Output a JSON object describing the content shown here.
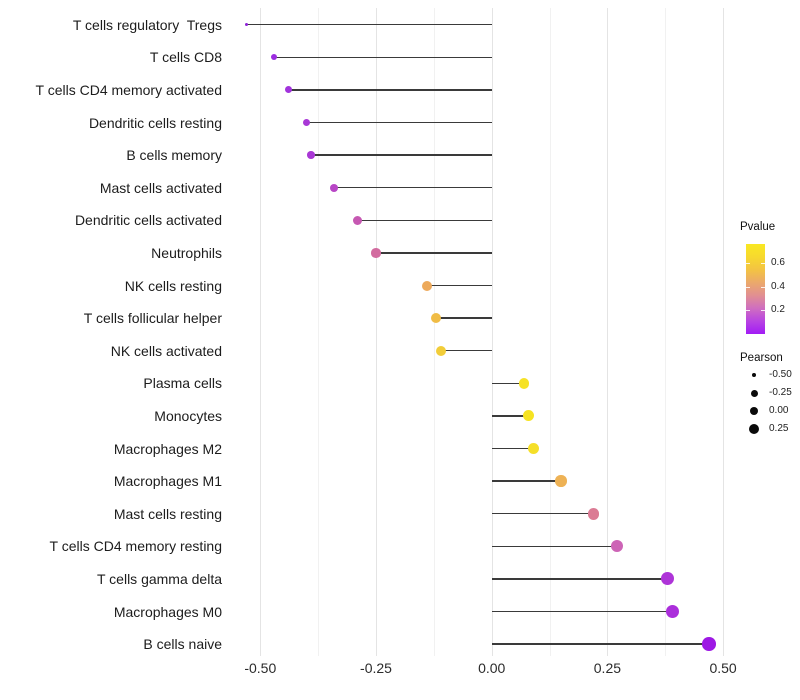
{
  "chart_data": {
    "type": "scatter",
    "variant": "lollipop",
    "orientation": "horizontal",
    "title": "",
    "xlabel": "",
    "ylabel": "",
    "grid": "vertical-only",
    "baseline": 0,
    "xlim": [
      -0.55,
      0.54
    ],
    "x_major_ticks": [
      -0.5,
      -0.25,
      0,
      0.25,
      0.5
    ],
    "x_tick_labels": [
      "-0.50",
      "-0.25",
      "0.00",
      "0.25",
      "0.50"
    ],
    "x_minor_ticks": [
      -0.375,
      -0.125,
      0.125,
      0.375
    ],
    "categories": [
      "T cells regulatory  Tregs",
      "T cells CD8",
      "T cells CD4 memory activated",
      "Dendritic cells resting",
      "B cells memory",
      "Mast cells activated",
      "Dendritic cells activated",
      "Neutrophils",
      "NK cells resting",
      "T cells follicular helper",
      "NK cells activated",
      "Plasma cells",
      "Monocytes",
      "Macrophages M2",
      "Macrophages M1",
      "Mast cells resting",
      "T cells CD4 memory resting",
      "T cells gamma delta",
      "Macrophages M0",
      "B cells naive"
    ],
    "series": [
      {
        "name": "Pearson",
        "values": [
          -0.53,
          -0.47,
          -0.44,
          -0.4,
          -0.39,
          -0.34,
          -0.29,
          -0.25,
          -0.14,
          -0.12,
          -0.11,
          0.07,
          0.08,
          0.09,
          0.15,
          0.22,
          0.27,
          0.38,
          0.39,
          0.47
        ]
      }
    ],
    "point_colors": [
      "#8f23d8",
      "#9c2de0",
      "#a133dc",
      "#a838d6",
      "#a938d5",
      "#b846c6",
      "#c658b2",
      "#d26b9f",
      "#eda95a",
      "#f0bc45",
      "#f2cd39",
      "#f6e226",
      "#f6e321",
      "#f5df29",
      "#eeb255",
      "#db7b94",
      "#cd64b6",
      "#ae34d8",
      "#ab2edb",
      "#9d18e4"
    ],
    "point_diameters": [
      3.6,
      6.4,
      7.0,
      7.6,
      7.6,
      8.2,
      9.0,
      9.4,
      10.0,
      10.2,
      10.3,
      10.8,
      10.9,
      11.0,
      11.4,
      11.9,
      12.2,
      12.9,
      13.0,
      13.6
    ],
    "legend_position": "right"
  },
  "legend_pvalue": {
    "title": "Pvalue",
    "tick_values": [
      0.6,
      0.4,
      0.2
    ],
    "tick_labels": [
      "0.6",
      "0.4",
      "0.2"
    ],
    "domain": [
      0,
      0.76
    ],
    "gradient_top_to_bottom": [
      "#f9e821",
      "#f7d92e",
      "#f3c343",
      "#eba96b",
      "#e18f92",
      "#cf6ec0",
      "#b844e2",
      "#a21cf5"
    ]
  },
  "legend_pearson": {
    "title": "Pearson",
    "entries": [
      {
        "label": "-0.50",
        "diameter": 4.0
      },
      {
        "label": "-0.25",
        "diameter": 7.0
      },
      {
        "label": "0.00",
        "diameter": 8.7
      },
      {
        "label": "0.25",
        "diameter": 10.0
      }
    ],
    "dot_color": "#0a0a0a"
  }
}
